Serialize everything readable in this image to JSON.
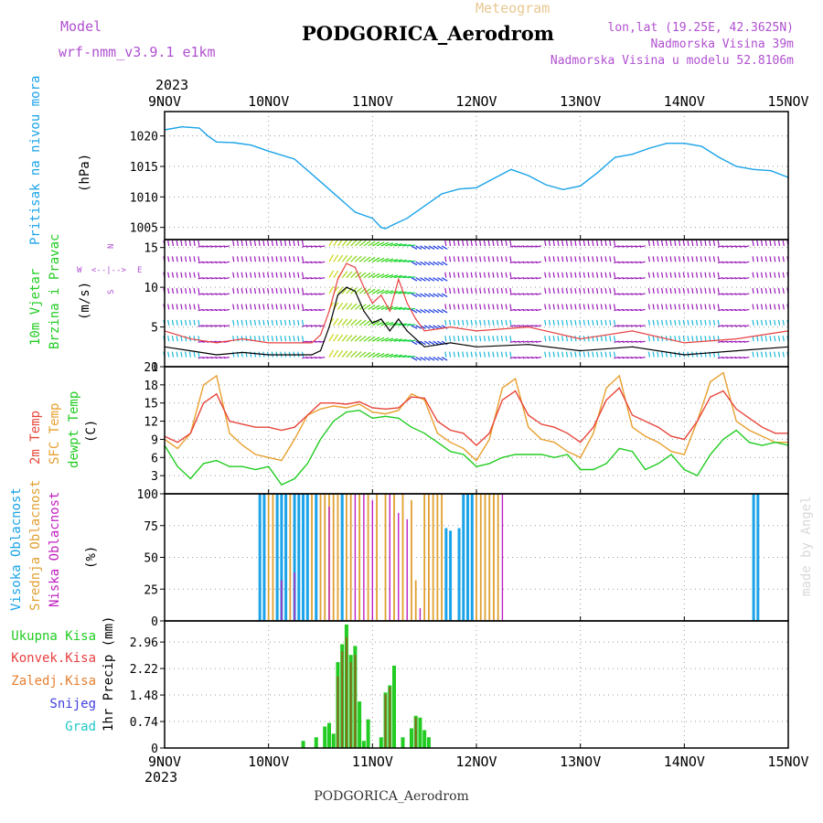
{
  "header": {
    "model_label": "Model",
    "model_name": "wrf-nmm_v3.9.1 e1km",
    "meteogram_label": "Meteogram",
    "station": "PODGORICA_Aerodrom",
    "lonlat": "lon,lat (19.25E, 42.3625N)",
    "elevation": "Nadmorska Visina 39m",
    "model_elevation": "Nadmorska Visina u modelu 52.8106m",
    "year": "2023",
    "footer_station": "PODGORICA_Aerodrom",
    "watermark": "made by Angel"
  },
  "colors": {
    "pressure": "#1aa3e8",
    "wind_label": "#22cc22",
    "wind_arrows_low": "#1ab8d8",
    "wind_arrows_high": "#9a1ab8",
    "temp2m": "#e8463a",
    "sfc": "#e8a030",
    "dewpt": "#22cc22",
    "cloud_high": "#1aa3e8",
    "cloud_mid": "#e0a030",
    "cloud_low": "#c020c0",
    "precip_total": "#22cc22",
    "precip_conv": "#e84040",
    "precip_frz": "#e88030",
    "precip_snow": "#4040e0",
    "precip_grad": "#22c8c8"
  },
  "x_axis": {
    "date_labels": [
      "9NOV",
      "10NOV",
      "11NOV",
      "12NOV",
      "13NOV",
      "14NOV",
      "15NOV"
    ],
    "hours_total": 144
  },
  "chart_data": [
    {
      "type": "line",
      "name": "pressure",
      "label": "Pritisak na nivou mora",
      "unit": "(hPa)",
      "ylim": [
        1003,
        1024
      ],
      "yticks": [
        1005,
        1010,
        1015,
        1020
      ],
      "x_hours": [
        0,
        4,
        8,
        10,
        12,
        16,
        20,
        24,
        30,
        36,
        40,
        44,
        48,
        50,
        51,
        53,
        56,
        60,
        64,
        68,
        72,
        76,
        80,
        84,
        88,
        92,
        96,
        100,
        104,
        108,
        112,
        116,
        120,
        124,
        128,
        132,
        136,
        140,
        144
      ],
      "series": [
        {
          "name": "pressure",
          "values": [
            1021,
            1021.5,
            1021.3,
            1020,
            1019,
            1018.9,
            1018.5,
            1017.5,
            1016.2,
            1012.5,
            1010,
            1007.5,
            1006.5,
            1005,
            1004.8,
            1005.5,
            1006.5,
            1008.5,
            1010.5,
            1011.3,
            1011.5,
            1013,
            1014.5,
            1013.5,
            1012,
            1011.2,
            1011.8,
            1014,
            1016.5,
            1017,
            1018,
            1018.8,
            1018.8,
            1018.3,
            1016.5,
            1015,
            1014.5,
            1014.3,
            1013.2
          ]
        }
      ]
    },
    {
      "type": "line",
      "name": "wind",
      "label_line1": "10m Vjetar",
      "label_line2": "Brzina i Pravac",
      "unit": "(m/s)",
      "ylim": [
        0,
        16
      ],
      "yticks": [
        0,
        5,
        10,
        15
      ],
      "compass": {
        "n": "N",
        "s": "S",
        "e": "E",
        "w": "W"
      },
      "x_hours": [
        0,
        6,
        12,
        18,
        24,
        30,
        34,
        36,
        38,
        40,
        42,
        44,
        46,
        48,
        50,
        52,
        54,
        56,
        58,
        60,
        66,
        72,
        84,
        96,
        108,
        120,
        132,
        144
      ],
      "series": [
        {
          "name": "speed",
          "values": [
            2.5,
            2,
            1.5,
            1.8,
            1.5,
            1.5,
            1.5,
            2,
            5,
            9,
            10,
            9.5,
            7,
            5.5,
            6,
            4.5,
            6,
            4.5,
            3.5,
            2.5,
            3,
            2.5,
            2.8,
            2,
            2.5,
            1.5,
            2,
            2.5
          ]
        },
        {
          "name": "gust",
          "values": [
            4.5,
            3.5,
            3,
            3.5,
            3,
            3,
            3,
            4,
            7,
            11,
            13,
            12.5,
            10,
            8,
            9,
            7,
            11,
            8,
            6,
            4.5,
            5,
            4.5,
            5,
            3.5,
            4.5,
            3,
            3.5,
            4.5
          ]
        }
      ]
    },
    {
      "type": "line",
      "name": "temperature",
      "label_line1": "2m Temp",
      "label_line2": "SFC Temp",
      "label_line3": "dewpt Temp",
      "unit": "(C)",
      "ylim": [
        0,
        21
      ],
      "yticks": [
        3,
        6,
        9,
        12,
        15,
        18,
        21
      ],
      "x_hours": [
        0,
        3,
        6,
        9,
        12,
        15,
        18,
        21,
        24,
        27,
        30,
        33,
        36,
        39,
        42,
        45,
        48,
        51,
        54,
        57,
        60,
        63,
        66,
        69,
        72,
        75,
        78,
        81,
        84,
        87,
        90,
        93,
        96,
        99,
        102,
        105,
        108,
        111,
        114,
        117,
        120,
        123,
        126,
        129,
        132,
        135,
        138,
        141,
        144
      ],
      "series": [
        {
          "name": "2m Temp",
          "values": [
            9.5,
            8.5,
            10,
            15,
            16.5,
            12,
            11.5,
            11,
            11,
            10.5,
            11,
            13,
            15,
            15,
            14.8,
            15.2,
            14.2,
            14,
            14.2,
            16,
            15.8,
            12,
            10.5,
            10,
            8,
            10,
            15.5,
            17,
            13,
            11.5,
            11,
            10,
            8.5,
            11,
            15.5,
            17.5,
            13,
            12,
            11,
            9.5,
            9,
            12,
            16,
            17,
            14,
            12.5,
            11,
            10,
            10
          ]
        },
        {
          "name": "SFC Temp",
          "values": [
            9,
            7.5,
            10,
            18,
            19.5,
            10,
            8,
            6.5,
            6,
            5.5,
            9,
            13,
            14,
            14.5,
            14.2,
            14.8,
            13.5,
            13.2,
            13.8,
            16.5,
            15.5,
            10,
            8.5,
            7.5,
            5.5,
            9,
            17.5,
            19,
            11,
            9,
            8.5,
            7,
            6,
            10,
            17.5,
            19.5,
            11,
            9.5,
            8.5,
            7,
            6.5,
            12,
            18.5,
            20,
            12,
            10.5,
            9.5,
            8.5,
            8.5
          ]
        },
        {
          "name": "dewpt Temp",
          "values": [
            8,
            4.5,
            2.5,
            5,
            5.5,
            4.5,
            4.5,
            4,
            4.5,
            1.5,
            2.5,
            5,
            9,
            12,
            13.5,
            13.8,
            12.5,
            12.8,
            12.5,
            11,
            10,
            8.5,
            7,
            6.5,
            4.5,
            5,
            6,
            6.5,
            6.5,
            6.5,
            6,
            6.5,
            4,
            4,
            5,
            7.5,
            7,
            4,
            5,
            6.5,
            4,
            3,
            6.5,
            9,
            10.5,
            8.5,
            8,
            8.5,
            8
          ]
        }
      ]
    },
    {
      "type": "bar",
      "name": "cloud",
      "label_line1": "Visoka Oblacnost",
      "label_line2": "Srednja Oblacnost",
      "label_line3": "Niska Oblacnost",
      "unit": "(%)",
      "ylim": [
        0,
        100
      ],
      "yticks": [
        0,
        25,
        50,
        75,
        100
      ],
      "series": [
        {
          "name": "Visoka Oblacnost",
          "bars": [
            [
              22,
              100
            ],
            [
              23,
              100
            ],
            [
              26,
              100
            ],
            [
              27,
              100
            ],
            [
              28,
              100
            ],
            [
              30,
              100
            ],
            [
              31,
              100
            ],
            [
              32,
              100
            ],
            [
              33,
              100
            ],
            [
              35,
              100
            ],
            [
              41,
              100
            ],
            [
              65,
              73
            ],
            [
              66,
              71
            ],
            [
              68,
              73
            ],
            [
              69,
              100
            ],
            [
              70,
              100
            ],
            [
              71,
              100
            ],
            [
              136,
              100
            ],
            [
              137,
              100
            ]
          ]
        },
        {
          "name": "Srednja Oblacnost",
          "bars": [
            [
              24,
              100
            ],
            [
              25,
              100
            ],
            [
              29,
              100
            ],
            [
              34,
              100
            ],
            [
              36,
              100
            ],
            [
              37,
              100
            ],
            [
              38,
              100
            ],
            [
              39,
              100
            ],
            [
              40,
              100
            ],
            [
              42,
              100
            ],
            [
              43,
              100
            ],
            [
              45,
              100
            ],
            [
              47,
              100
            ],
            [
              49,
              100
            ],
            [
              51,
              100
            ],
            [
              53,
              100
            ],
            [
              55,
              100
            ],
            [
              57,
              95
            ],
            [
              58,
              32
            ],
            [
              60,
              100
            ],
            [
              61,
              100
            ],
            [
              62,
              100
            ],
            [
              63,
              100
            ],
            [
              64,
              100
            ],
            [
              72,
              100
            ],
            [
              73,
              100
            ],
            [
              74,
              100
            ],
            [
              75,
              100
            ],
            [
              76,
              100
            ],
            [
              77,
              100
            ]
          ]
        },
        {
          "name": "Niska Oblacnost",
          "bars": [
            [
              27,
              32
            ],
            [
              30,
              38
            ],
            [
              38,
              90
            ],
            [
              44,
              100
            ],
            [
              46,
              100
            ],
            [
              48,
              95
            ],
            [
              52,
              100
            ],
            [
              54,
              85
            ],
            [
              56,
              80
            ],
            [
              59,
              10
            ],
            [
              78,
              100
            ]
          ]
        }
      ]
    },
    {
      "type": "bar",
      "name": "precip",
      "label_line1": "Ukupna Kisa",
      "label_line2": "Konvek.Kisa",
      "label_line3": "Zaledj.Kisa",
      "label_line4": "Snijeg",
      "label_line5": "Grad",
      "unit": "1hr Precip (mm)",
      "ylim": [
        0,
        3.55
      ],
      "yticks": [
        0,
        0.74,
        1.48,
        2.22,
        2.96
      ],
      "tick_labels": [
        "0",
        "0.74",
        "1.48",
        "2.22",
        "2.96"
      ],
      "series": [
        {
          "name": "Ukupna Kisa",
          "bars": [
            [
              32,
              0.2
            ],
            [
              35,
              0.3
            ],
            [
              37,
              0.6
            ],
            [
              38,
              0.7
            ],
            [
              39,
              0.4
            ],
            [
              40,
              2.4
            ],
            [
              41,
              2.9
            ],
            [
              42,
              3.45
            ],
            [
              43,
              2.6
            ],
            [
              44,
              2.85
            ],
            [
              45,
              1.3
            ],
            [
              46,
              0.2
            ],
            [
              47,
              0.8
            ],
            [
              50,
              0.3
            ],
            [
              51,
              1.55
            ],
            [
              52,
              1.75
            ],
            [
              53,
              2.3
            ],
            [
              55,
              0.3
            ],
            [
              57,
              0.55
            ],
            [
              58,
              0.9
            ],
            [
              59,
              0.85
            ],
            [
              60,
              0.5
            ],
            [
              61,
              0.3
            ]
          ]
        },
        {
          "name": "Konvek.Kisa",
          "bars": [
            [
              40,
              2.0
            ],
            [
              41,
              2.7
            ],
            [
              42,
              3.1
            ],
            [
              43,
              2.4
            ],
            [
              44,
              2.6
            ],
            [
              51,
              1.5
            ],
            [
              52,
              1.7
            ],
            [
              58,
              0.85
            ]
          ]
        }
      ]
    }
  ]
}
